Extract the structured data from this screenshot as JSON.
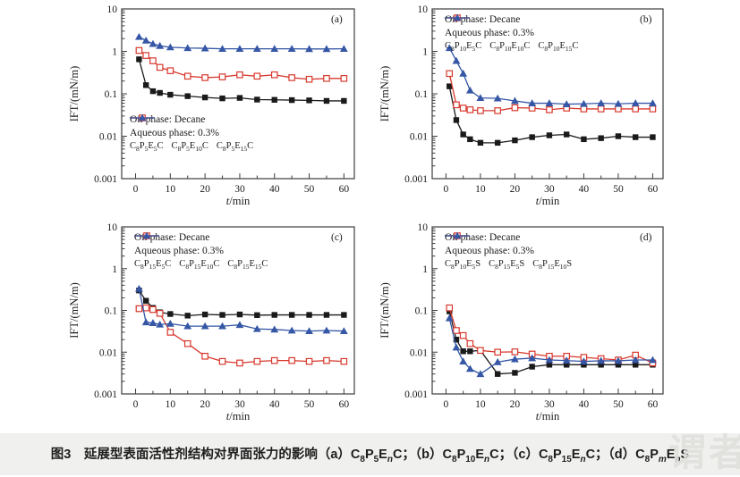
{
  "figure": {
    "background": "#ffffff",
    "caption_background": "#f0f0ee",
    "frame_color": "#3d3d3d",
    "text_color": "#1a1a1a"
  },
  "axis": {
    "xlabel_italic": "t",
    "xlabel_rest": "/min",
    "ylabel": "IFT/(mN/m)",
    "x_major_ticks": [
      0,
      10,
      20,
      30,
      40,
      50,
      60
    ],
    "x_minor_ticks": [
      5,
      15,
      25,
      35,
      45,
      55
    ],
    "y_tick_labels": [
      "10",
      "1",
      "0.1",
      "0.01",
      "0.001"
    ],
    "y_tick_values": [
      10,
      1,
      0.1,
      0.01,
      0.001
    ]
  },
  "chart_data": [
    {
      "type": "line",
      "panel_label": "(a)",
      "xlabel": "t/min",
      "ylabel": "IFT/(mN/m)",
      "x_scale": "linear",
      "y_scale": "log",
      "xlim": [
        -4,
        63
      ],
      "ylim": [
        0.001,
        10
      ],
      "grid": false,
      "inset_lines": [
        "Oil phase: Decane",
        "Aqueous phase: 0.3%"
      ],
      "inset_position": "bottom-left",
      "x": [
        1,
        3,
        5,
        7,
        10,
        15,
        20,
        25,
        30,
        35,
        40,
        45,
        50,
        55,
        60
      ],
      "series": [
        {
          "name": "C_8_P_5_E_5_C",
          "marker": "filled-square",
          "color": "#1a1a1a",
          "values": [
            0.65,
            0.16,
            0.115,
            0.105,
            0.095,
            0.088,
            0.082,
            0.078,
            0.08,
            0.073,
            0.072,
            0.071,
            0.07,
            0.068,
            0.068
          ]
        },
        {
          "name": "C_8_P_5_E_10_C",
          "marker": "open-square",
          "color": "#d8382d",
          "values": [
            1.05,
            0.8,
            0.6,
            0.42,
            0.35,
            0.26,
            0.24,
            0.25,
            0.28,
            0.26,
            0.28,
            0.24,
            0.22,
            0.23,
            0.23
          ]
        },
        {
          "name": "C_8_P_5_E_15_C",
          "marker": "filled-triangle",
          "color": "#3557a6",
          "values": [
            2.2,
            1.8,
            1.5,
            1.35,
            1.25,
            1.2,
            1.18,
            1.15,
            1.15,
            1.15,
            1.15,
            1.15,
            1.14,
            1.14,
            1.15
          ]
        }
      ]
    },
    {
      "type": "line",
      "panel_label": "(b)",
      "xlabel": "t/min",
      "ylabel": "IFT/(mN/m)",
      "x_scale": "linear",
      "y_scale": "log",
      "xlim": [
        -4,
        63
      ],
      "ylim": [
        0.001,
        10
      ],
      "grid": false,
      "inset_lines": [
        "Oil phase: Decane",
        "Aqueous phase: 0.3%"
      ],
      "inset_position": "top-left",
      "x": [
        1,
        3,
        5,
        7,
        10,
        15,
        20,
        25,
        30,
        35,
        40,
        45,
        50,
        55,
        60
      ],
      "series": [
        {
          "name": "C_8_P_10_E_5_C",
          "marker": "filled-square",
          "color": "#1a1a1a",
          "values": [
            0.15,
            0.024,
            0.011,
            0.0085,
            0.007,
            0.007,
            0.008,
            0.0095,
            0.0105,
            0.011,
            0.0085,
            0.009,
            0.01,
            0.0095,
            0.0095
          ]
        },
        {
          "name": "C_8_P_10_E_10_C",
          "marker": "open-square",
          "color": "#d8382d",
          "values": [
            0.3,
            0.055,
            0.046,
            0.042,
            0.04,
            0.04,
            0.047,
            0.046,
            0.042,
            0.046,
            0.044,
            0.044,
            0.044,
            0.044,
            0.044
          ]
        },
        {
          "name": "C_8_P_10_E_15_C",
          "marker": "filled-triangle",
          "color": "#3557a6",
          "values": [
            1.2,
            0.6,
            0.3,
            0.12,
            0.08,
            0.078,
            0.068,
            0.06,
            0.06,
            0.057,
            0.058,
            0.06,
            0.058,
            0.06,
            0.06
          ]
        }
      ]
    },
    {
      "type": "line",
      "panel_label": "(c)",
      "xlabel": "t/min",
      "ylabel": "IFT/(mN/m)",
      "x_scale": "linear",
      "y_scale": "log",
      "xlim": [
        -4,
        63
      ],
      "ylim": [
        0.001,
        10
      ],
      "grid": false,
      "inset_lines": [
        "Oil phase: Decane",
        "Aqueous phase: 0.3%"
      ],
      "inset_position": "top-left",
      "x": [
        1,
        3,
        5,
        7,
        10,
        15,
        20,
        25,
        30,
        35,
        40,
        45,
        50,
        55,
        60
      ],
      "series": [
        {
          "name": "C_8_P_15_E_5_C",
          "marker": "filled-square",
          "color": "#1a1a1a",
          "values": [
            0.3,
            0.17,
            0.115,
            0.09,
            0.082,
            0.075,
            0.08,
            0.078,
            0.08,
            0.077,
            0.078,
            0.078,
            0.078,
            0.078,
            0.078
          ]
        },
        {
          "name": "C_8_P_15_E_10_C",
          "marker": "open-square",
          "color": "#d8382d",
          "values": [
            0.11,
            0.115,
            0.105,
            0.085,
            0.03,
            0.016,
            0.008,
            0.006,
            0.0055,
            0.006,
            0.0063,
            0.0063,
            0.006,
            0.0063,
            0.006
          ]
        },
        {
          "name": "C_8_P_15_E_15_C",
          "marker": "filled-triangle",
          "color": "#3557a6",
          "values": [
            0.33,
            0.052,
            0.05,
            0.046,
            0.048,
            0.042,
            0.042,
            0.042,
            0.045,
            0.036,
            0.035,
            0.033,
            0.032,
            0.033,
            0.032
          ]
        }
      ]
    },
    {
      "type": "line",
      "panel_label": "(d)",
      "xlabel": "t/min",
      "ylabel": "IFT/(mN/m)",
      "x_scale": "linear",
      "y_scale": "log",
      "xlim": [
        -4,
        63
      ],
      "ylim": [
        0.001,
        10
      ],
      "grid": false,
      "inset_lines": [
        "Oil phase: Decane",
        "Aqueous phase: 0.3%"
      ],
      "inset_position": "top-left",
      "x": [
        1,
        3,
        5,
        7,
        10,
        15,
        20,
        25,
        30,
        35,
        40,
        45,
        50,
        55,
        60
      ],
      "series": [
        {
          "name": "C_8_P_10_E_5_S",
          "marker": "filled-square",
          "color": "#1a1a1a",
          "values": [
            0.095,
            0.02,
            0.0105,
            0.0105,
            0.011,
            0.003,
            0.0032,
            0.0045,
            0.005,
            0.005,
            0.005,
            0.005,
            0.005,
            0.005,
            0.005
          ]
        },
        {
          "name": "C_8_P_15_E_5_S",
          "marker": "open-square",
          "color": "#d8382d",
          "values": [
            0.115,
            0.033,
            0.025,
            0.016,
            0.011,
            0.01,
            0.0102,
            0.009,
            0.008,
            0.008,
            0.0075,
            0.007,
            0.0065,
            0.0085,
            0.0055
          ]
        },
        {
          "name": "C_8_P_15_E_10_S",
          "marker": "filled-triangle",
          "color": "#3557a6",
          "values": [
            0.065,
            0.013,
            0.006,
            0.004,
            0.003,
            0.0058,
            0.0068,
            0.0072,
            0.0065,
            0.0063,
            0.006,
            0.0062,
            0.0062,
            0.0065,
            0.0065
          ]
        }
      ]
    }
  ],
  "caption": {
    "label": "图3",
    "title": "延展型表面活性剂结构对界面张力的影响",
    "items": [
      {
        "pre": "（a）",
        "formula": "C_8_P_5_E_n_C",
        "post": "；"
      },
      {
        "pre": "（b）",
        "formula": "C_8_P_10_E_n_C",
        "post": "；"
      },
      {
        "pre": "（c）",
        "formula": "C_8_P_15_E_n_C",
        "post": "；"
      },
      {
        "pre": "（d）",
        "formula": "C_8_P_m_E_n_S",
        "post": ""
      }
    ]
  },
  "watermark": {
    "text": "谓者",
    "color": "rgba(222,222,219,0.85)"
  }
}
